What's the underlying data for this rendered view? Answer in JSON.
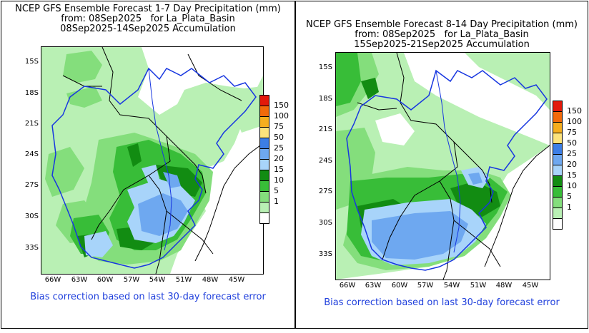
{
  "colors": {
    "legend": [
      "#ffffff",
      "#b9f0b4",
      "#84de7c",
      "#38bd38",
      "#128c12",
      "#a8d4fa",
      "#6ea8f0",
      "#3c7ee6",
      "#fce37c",
      "#f5ae1e",
      "#f26a0a",
      "#e3190a"
    ],
    "boundary_river": "#1736e0",
    "footnote": "#1f3fdc"
  },
  "legend_labels": [
    "1",
    "5",
    "10",
    "15",
    "20",
    "25",
    "50",
    "75",
    "100",
    "150"
  ],
  "panels": [
    {
      "title_lines": [
        "NCEP GFS Ensemble Forecast 1-7 Day Precipitation (mm)",
        "from: 08Sep2025   for La_Plata_Basin",
        "08Sep2025-14Sep2025 Accumulation"
      ],
      "lat_labels": [
        "15S",
        "18S",
        "21S",
        "24S",
        "27S",
        "30S",
        "33S"
      ],
      "lon_labels": [
        "66W",
        "63W",
        "60W",
        "57W",
        "54W",
        "51W",
        "48W",
        "45W"
      ],
      "footnote": "Bias correction based on last 30-day forecast error"
    },
    {
      "title_lines": [
        "NCEP GFS Ensemble Forecast 8-14 Day Precipitation (mm)",
        "from: 08Sep2025   for La_Plata_Basin",
        "15Sep2025-21Sep2025 Accumulation"
      ],
      "lat_labels": [
        "15S",
        "18S",
        "21S",
        "24S",
        "27S",
        "30S",
        "33S"
      ],
      "lon_labels": [
        "66W",
        "63W",
        "60W",
        "57W",
        "54W",
        "51W",
        "48W",
        "45W"
      ],
      "footnote": "Bias correction based on last 30-day forecast error"
    }
  ]
}
